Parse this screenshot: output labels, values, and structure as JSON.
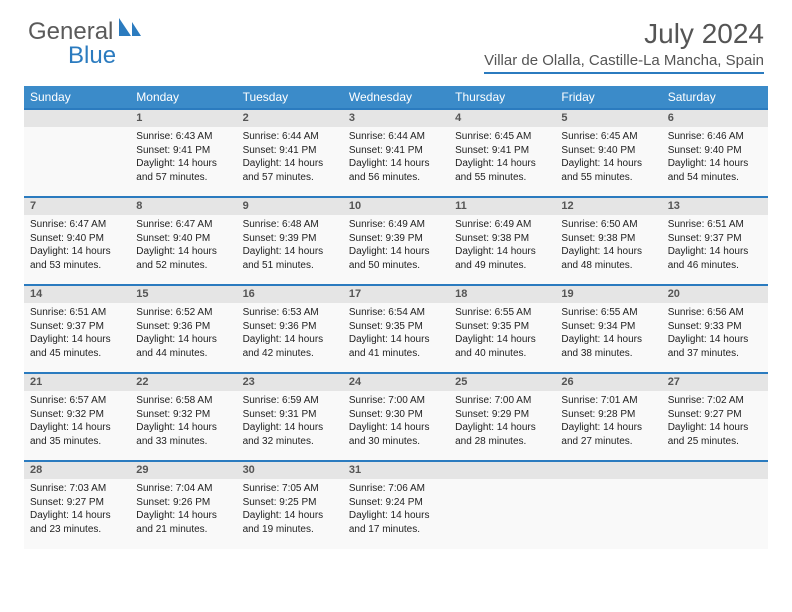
{
  "brand": {
    "name1": "General",
    "name2": "Blue"
  },
  "title": "July 2024",
  "location": "Villar de Olalla, Castille-La Mancha, Spain",
  "header_color": "#3b8bc9",
  "rule_color": "#2b7bbf",
  "dayheader_bg": "#e5e5e5",
  "weekdays": [
    "Sunday",
    "Monday",
    "Tuesday",
    "Wednesday",
    "Thursday",
    "Friday",
    "Saturday"
  ],
  "weeks": [
    [
      {
        "n": "",
        "lines": []
      },
      {
        "n": "1",
        "lines": [
          "Sunrise: 6:43 AM",
          "Sunset: 9:41 PM",
          "Daylight: 14 hours and 57 minutes."
        ]
      },
      {
        "n": "2",
        "lines": [
          "Sunrise: 6:44 AM",
          "Sunset: 9:41 PM",
          "Daylight: 14 hours and 57 minutes."
        ]
      },
      {
        "n": "3",
        "lines": [
          "Sunrise: 6:44 AM",
          "Sunset: 9:41 PM",
          "Daylight: 14 hours and 56 minutes."
        ]
      },
      {
        "n": "4",
        "lines": [
          "Sunrise: 6:45 AM",
          "Sunset: 9:41 PM",
          "Daylight: 14 hours and 55 minutes."
        ]
      },
      {
        "n": "5",
        "lines": [
          "Sunrise: 6:45 AM",
          "Sunset: 9:40 PM",
          "Daylight: 14 hours and 55 minutes."
        ]
      },
      {
        "n": "6",
        "lines": [
          "Sunrise: 6:46 AM",
          "Sunset: 9:40 PM",
          "Daylight: 14 hours and 54 minutes."
        ]
      }
    ],
    [
      {
        "n": "7",
        "lines": [
          "Sunrise: 6:47 AM",
          "Sunset: 9:40 PM",
          "Daylight: 14 hours and 53 minutes."
        ]
      },
      {
        "n": "8",
        "lines": [
          "Sunrise: 6:47 AM",
          "Sunset: 9:40 PM",
          "Daylight: 14 hours and 52 minutes."
        ]
      },
      {
        "n": "9",
        "lines": [
          "Sunrise: 6:48 AM",
          "Sunset: 9:39 PM",
          "Daylight: 14 hours and 51 minutes."
        ]
      },
      {
        "n": "10",
        "lines": [
          "Sunrise: 6:49 AM",
          "Sunset: 9:39 PM",
          "Daylight: 14 hours and 50 minutes."
        ]
      },
      {
        "n": "11",
        "lines": [
          "Sunrise: 6:49 AM",
          "Sunset: 9:38 PM",
          "Daylight: 14 hours and 49 minutes."
        ]
      },
      {
        "n": "12",
        "lines": [
          "Sunrise: 6:50 AM",
          "Sunset: 9:38 PM",
          "Daylight: 14 hours and 48 minutes."
        ]
      },
      {
        "n": "13",
        "lines": [
          "Sunrise: 6:51 AM",
          "Sunset: 9:37 PM",
          "Daylight: 14 hours and 46 minutes."
        ]
      }
    ],
    [
      {
        "n": "14",
        "lines": [
          "Sunrise: 6:51 AM",
          "Sunset: 9:37 PM",
          "Daylight: 14 hours and 45 minutes."
        ]
      },
      {
        "n": "15",
        "lines": [
          "Sunrise: 6:52 AM",
          "Sunset: 9:36 PM",
          "Daylight: 14 hours and 44 minutes."
        ]
      },
      {
        "n": "16",
        "lines": [
          "Sunrise: 6:53 AM",
          "Sunset: 9:36 PM",
          "Daylight: 14 hours and 42 minutes."
        ]
      },
      {
        "n": "17",
        "lines": [
          "Sunrise: 6:54 AM",
          "Sunset: 9:35 PM",
          "Daylight: 14 hours and 41 minutes."
        ]
      },
      {
        "n": "18",
        "lines": [
          "Sunrise: 6:55 AM",
          "Sunset: 9:35 PM",
          "Daylight: 14 hours and 40 minutes."
        ]
      },
      {
        "n": "19",
        "lines": [
          "Sunrise: 6:55 AM",
          "Sunset: 9:34 PM",
          "Daylight: 14 hours and 38 minutes."
        ]
      },
      {
        "n": "20",
        "lines": [
          "Sunrise: 6:56 AM",
          "Sunset: 9:33 PM",
          "Daylight: 14 hours and 37 minutes."
        ]
      }
    ],
    [
      {
        "n": "21",
        "lines": [
          "Sunrise: 6:57 AM",
          "Sunset: 9:32 PM",
          "Daylight: 14 hours and 35 minutes."
        ]
      },
      {
        "n": "22",
        "lines": [
          "Sunrise: 6:58 AM",
          "Sunset: 9:32 PM",
          "Daylight: 14 hours and 33 minutes."
        ]
      },
      {
        "n": "23",
        "lines": [
          "Sunrise: 6:59 AM",
          "Sunset: 9:31 PM",
          "Daylight: 14 hours and 32 minutes."
        ]
      },
      {
        "n": "24",
        "lines": [
          "Sunrise: 7:00 AM",
          "Sunset: 9:30 PM",
          "Daylight: 14 hours and 30 minutes."
        ]
      },
      {
        "n": "25",
        "lines": [
          "Sunrise: 7:00 AM",
          "Sunset: 9:29 PM",
          "Daylight: 14 hours and 28 minutes."
        ]
      },
      {
        "n": "26",
        "lines": [
          "Sunrise: 7:01 AM",
          "Sunset: 9:28 PM",
          "Daylight: 14 hours and 27 minutes."
        ]
      },
      {
        "n": "27",
        "lines": [
          "Sunrise: 7:02 AM",
          "Sunset: 9:27 PM",
          "Daylight: 14 hours and 25 minutes."
        ]
      }
    ],
    [
      {
        "n": "28",
        "lines": [
          "Sunrise: 7:03 AM",
          "Sunset: 9:27 PM",
          "Daylight: 14 hours and 23 minutes."
        ]
      },
      {
        "n": "29",
        "lines": [
          "Sunrise: 7:04 AM",
          "Sunset: 9:26 PM",
          "Daylight: 14 hours and 21 minutes."
        ]
      },
      {
        "n": "30",
        "lines": [
          "Sunrise: 7:05 AM",
          "Sunset: 9:25 PM",
          "Daylight: 14 hours and 19 minutes."
        ]
      },
      {
        "n": "31",
        "lines": [
          "Sunrise: 7:06 AM",
          "Sunset: 9:24 PM",
          "Daylight: 14 hours and 17 minutes."
        ]
      },
      {
        "n": "",
        "lines": []
      },
      {
        "n": "",
        "lines": []
      },
      {
        "n": "",
        "lines": []
      }
    ]
  ]
}
